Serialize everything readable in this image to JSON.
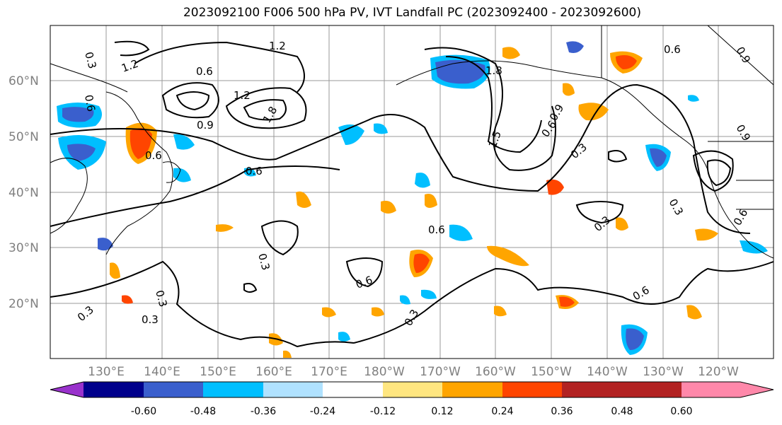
{
  "title": "2023092100 F006 500 hPa PV, IVT Landfall PC (2023092400 - 2023092600)",
  "lat_ticks": [
    "60°N",
    "50°N",
    "40°N",
    "30°N",
    "20°N"
  ],
  "lon_ticks": [
    "130°E",
    "140°E",
    "150°E",
    "160°E",
    "170°E",
    "180°W",
    "170°W",
    "160°W",
    "150°W",
    "140°W",
    "130°W",
    "120°W"
  ],
  "contour_labels": [
    "0.3",
    "0.6",
    "0.9",
    "1.2",
    "1.5",
    "1.8"
  ],
  "colorbar": {
    "colors": [
      "#9932cc",
      "#00008b",
      "#3a5fcd",
      "#00bfff",
      "#b0e2ff",
      "#ffffff",
      "#ffe680",
      "#ffa500",
      "#ff4500",
      "#b22222",
      "#ff88aa"
    ],
    "tick_labels": [
      "-0.60",
      "-0.48",
      "-0.36",
      "-0.24",
      "-0.12",
      "0.12",
      "0.24",
      "0.36",
      "0.48",
      "0.60"
    ]
  }
}
